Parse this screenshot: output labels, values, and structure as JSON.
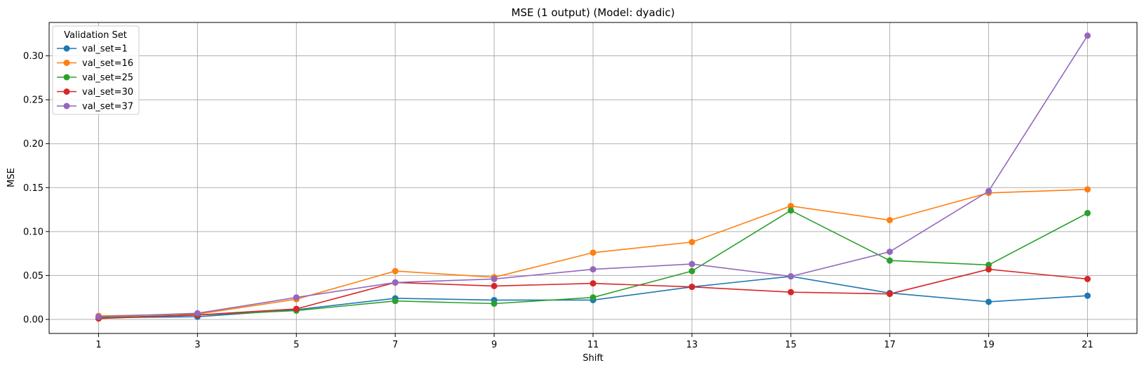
{
  "chart_data": {
    "type": "line",
    "title": "MSE (1 output) (Model: dyadic)",
    "xlabel": "Shift",
    "ylabel": "MSE",
    "x": [
      1,
      3,
      5,
      7,
      9,
      11,
      13,
      15,
      17,
      19,
      21
    ],
    "x_ticks": [
      "1",
      "3",
      "5",
      "7",
      "9",
      "11",
      "13",
      "15",
      "17",
      "19",
      "21"
    ],
    "xlim": [
      0,
      22
    ],
    "ylim": [
      -0.016,
      0.338
    ],
    "y_ticks": [
      "0.00",
      "0.05",
      "0.10",
      "0.15",
      "0.20",
      "0.25",
      "0.30"
    ],
    "grid": true,
    "legend": {
      "title": "Validation Set",
      "placement": "upper-left"
    },
    "series": [
      {
        "name": "val_set=1",
        "color": "#1f77b4",
        "values": [
          0.002,
          0.003,
          0.011,
          0.024,
          0.022,
          0.022,
          0.037,
          0.049,
          0.03,
          0.02,
          0.027
        ]
      },
      {
        "name": "val_set=16",
        "color": "#ff7f0e",
        "values": [
          0.004,
          0.006,
          0.023,
          0.055,
          0.048,
          0.076,
          0.088,
          0.129,
          0.113,
          0.144,
          0.148
        ]
      },
      {
        "name": "val_set=25",
        "color": "#2ca02c",
        "values": [
          0.002,
          0.005,
          0.01,
          0.021,
          0.018,
          0.025,
          0.055,
          0.124,
          0.067,
          0.062,
          0.121
        ]
      },
      {
        "name": "val_set=30",
        "color": "#d62728",
        "values": [
          0.001,
          0.005,
          0.012,
          0.042,
          0.038,
          0.041,
          0.037,
          0.031,
          0.029,
          0.057,
          0.046
        ]
      },
      {
        "name": "val_set=37",
        "color": "#9467bd",
        "values": [
          0.003,
          0.007,
          0.025,
          0.042,
          0.046,
          0.057,
          0.063,
          0.049,
          0.077,
          0.146,
          0.323
        ]
      }
    ]
  }
}
